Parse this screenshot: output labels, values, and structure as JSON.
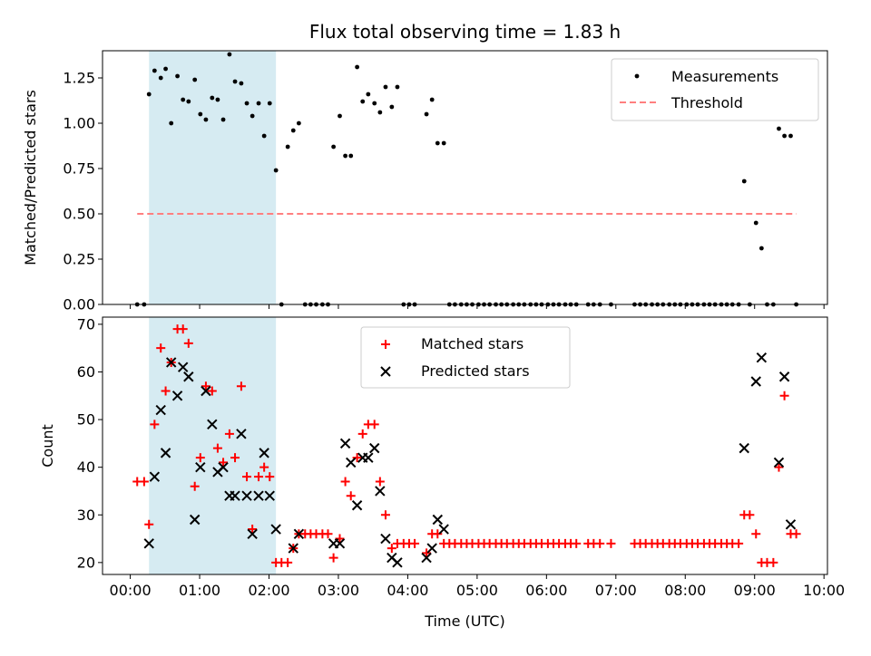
{
  "chart_data": [
    {
      "type": "scatter",
      "title": "Flux total observing time = 1.83 h",
      "ylabel": "Matched/Predicted stars",
      "xlabel": "",
      "xlim": [
        -0.4,
        10.05
      ],
      "ylim": [
        0,
        1.4
      ],
      "yticks": [
        0,
        0.25,
        0.5,
        0.75,
        1.0,
        1.25
      ],
      "ytick_labels": [
        "0.00",
        "0.25",
        "0.50",
        "0.75",
        "1.00",
        "1.25"
      ],
      "shaded_interval": [
        0.27,
        2.1
      ],
      "shade_color": "#add8e6",
      "legend": {
        "placement": "top-right",
        "entries": [
          "Measurements",
          "Threshold"
        ]
      },
      "threshold": {
        "name": "Threshold",
        "value": 0.5,
        "x": [
          0.1,
          9.6
        ],
        "color": "#ff7f7f",
        "style": "dashed"
      },
      "series": [
        {
          "name": "Measurements",
          "color": "#000000",
          "marker": "dot",
          "points": [
            [
              0.1,
              0
            ],
            [
              0.2,
              0
            ],
            [
              0.27,
              1.16
            ],
            [
              0.35,
              1.29
            ],
            [
              0.44,
              1.25
            ],
            [
              0.51,
              1.3
            ],
            [
              0.59,
              1.0
            ],
            [
              0.68,
              1.26
            ],
            [
              0.76,
              1.13
            ],
            [
              0.84,
              1.12
            ],
            [
              0.93,
              1.24
            ],
            [
              1.01,
              1.05
            ],
            [
              1.09,
              1.02
            ],
            [
              1.18,
              1.14
            ],
            [
              1.26,
              1.13
            ],
            [
              1.34,
              1.02
            ],
            [
              1.43,
              1.38
            ],
            [
              1.51,
              1.23
            ],
            [
              1.6,
              1.22
            ],
            [
              1.68,
              1.11
            ],
            [
              1.76,
              1.04
            ],
            [
              1.85,
              1.11
            ],
            [
              1.93,
              0.93
            ],
            [
              2.01,
              1.11
            ],
            [
              2.1,
              0.74
            ],
            [
              2.18,
              0
            ],
            [
              2.27,
              0.87
            ],
            [
              2.35,
              0.96
            ],
            [
              2.43,
              1.0
            ],
            [
              2.52,
              0
            ],
            [
              2.6,
              0
            ],
            [
              2.68,
              0
            ],
            [
              2.77,
              0
            ],
            [
              2.85,
              0
            ],
            [
              2.93,
              0.87
            ],
            [
              3.02,
              1.04
            ],
            [
              3.1,
              0.82
            ],
            [
              3.18,
              0.82
            ],
            [
              3.27,
              1.31
            ],
            [
              3.35,
              1.12
            ],
            [
              3.43,
              1.16
            ],
            [
              3.52,
              1.11
            ],
            [
              3.6,
              1.06
            ],
            [
              3.68,
              1.2
            ],
            [
              3.77,
              1.09
            ],
            [
              3.85,
              1.2
            ],
            [
              3.94,
              0
            ],
            [
              4.02,
              0
            ],
            [
              4.1,
              0
            ],
            [
              4.27,
              1.05
            ],
            [
              4.35,
              1.13
            ],
            [
              4.43,
              0.89
            ],
            [
              4.52,
              0.89
            ],
            [
              4.6,
              0
            ],
            [
              4.68,
              0
            ],
            [
              4.77,
              0
            ],
            [
              4.85,
              0
            ],
            [
              4.93,
              0
            ],
            [
              5.02,
              0
            ],
            [
              5.1,
              0
            ],
            [
              5.18,
              0
            ],
            [
              5.27,
              0
            ],
            [
              5.35,
              0
            ],
            [
              5.43,
              0
            ],
            [
              5.52,
              0
            ],
            [
              5.6,
              0
            ],
            [
              5.68,
              0
            ],
            [
              5.77,
              0
            ],
            [
              5.85,
              0
            ],
            [
              5.93,
              0
            ],
            [
              6.02,
              0
            ],
            [
              6.1,
              0
            ],
            [
              6.18,
              0
            ],
            [
              6.27,
              0
            ],
            [
              6.35,
              0
            ],
            [
              6.43,
              0
            ],
            [
              6.6,
              0
            ],
            [
              6.68,
              0
            ],
            [
              6.77,
              0
            ],
            [
              6.93,
              0
            ],
            [
              7.27,
              0
            ],
            [
              7.35,
              0
            ],
            [
              7.43,
              0
            ],
            [
              7.52,
              0
            ],
            [
              7.6,
              0
            ],
            [
              7.68,
              0
            ],
            [
              7.77,
              0
            ],
            [
              7.85,
              0
            ],
            [
              7.93,
              0
            ],
            [
              8.02,
              0
            ],
            [
              8.1,
              0
            ],
            [
              8.18,
              0
            ],
            [
              8.27,
              0
            ],
            [
              8.35,
              0
            ],
            [
              8.43,
              0
            ],
            [
              8.52,
              0
            ],
            [
              8.6,
              0
            ],
            [
              8.68,
              0
            ],
            [
              8.77,
              0
            ],
            [
              8.85,
              0.68
            ],
            [
              8.93,
              0
            ],
            [
              9.02,
              0.45
            ],
            [
              9.1,
              0.31
            ],
            [
              9.18,
              0
            ],
            [
              9.27,
              0
            ],
            [
              9.35,
              0.97
            ],
            [
              9.43,
              0.93
            ],
            [
              9.52,
              0.93
            ],
            [
              9.6,
              0
            ]
          ]
        }
      ]
    },
    {
      "type": "scatter",
      "title": "",
      "xlabel": "Time (UTC)",
      "ylabel": "Count",
      "xlim": [
        -0.4,
        10.05
      ],
      "ylim": [
        17.5,
        71.5
      ],
      "yticks": [
        20,
        30,
        40,
        50,
        60,
        70
      ],
      "ytick_labels": [
        "20",
        "30",
        "40",
        "50",
        "60",
        "70"
      ],
      "xticks": [
        0,
        1,
        2,
        3,
        4,
        5,
        6,
        7,
        8,
        9,
        10
      ],
      "xtick_labels": [
        "00:00",
        "01:00",
        "02:00",
        "03:00",
        "04:00",
        "05:00",
        "06:00",
        "07:00",
        "08:00",
        "09:00",
        "10:00"
      ],
      "shaded_interval": [
        0.27,
        2.1
      ],
      "shade_color": "#add8e6",
      "legend": {
        "placement": "top-center",
        "entries": [
          "Matched stars",
          "Predicted stars"
        ]
      },
      "series": [
        {
          "name": "Matched stars",
          "color": "#ff0000",
          "marker": "plus",
          "points": [
            [
              0.1,
              37
            ],
            [
              0.2,
              37
            ],
            [
              0.27,
              28
            ],
            [
              0.35,
              49
            ],
            [
              0.44,
              65
            ],
            [
              0.51,
              56
            ],
            [
              0.59,
              62
            ],
            [
              0.68,
              69
            ],
            [
              0.76,
              69
            ],
            [
              0.84,
              66
            ],
            [
              0.93,
              36
            ],
            [
              1.01,
              42
            ],
            [
              1.09,
              57
            ],
            [
              1.18,
              56
            ],
            [
              1.26,
              44
            ],
            [
              1.34,
              41
            ],
            [
              1.43,
              47
            ],
            [
              1.51,
              42
            ],
            [
              1.6,
              57
            ],
            [
              1.68,
              38
            ],
            [
              1.76,
              27
            ],
            [
              1.85,
              38
            ],
            [
              1.93,
              40
            ],
            [
              2.01,
              38
            ],
            [
              2.1,
              20
            ],
            [
              2.18,
              20
            ],
            [
              2.27,
              20
            ],
            [
              2.35,
              23
            ],
            [
              2.43,
              26
            ],
            [
              2.52,
              26
            ],
            [
              2.6,
              26
            ],
            [
              2.68,
              26
            ],
            [
              2.77,
              26
            ],
            [
              2.85,
              26
            ],
            [
              2.93,
              21
            ],
            [
              3.02,
              25
            ],
            [
              3.1,
              37
            ],
            [
              3.18,
              34
            ],
            [
              3.27,
              42
            ],
            [
              3.35,
              47
            ],
            [
              3.43,
              49
            ],
            [
              3.52,
              49
            ],
            [
              3.6,
              37
            ],
            [
              3.68,
              30
            ],
            [
              3.77,
              23
            ],
            [
              3.85,
              24
            ],
            [
              3.94,
              24
            ],
            [
              4.02,
              24
            ],
            [
              4.1,
              24
            ],
            [
              4.27,
              22
            ],
            [
              4.35,
              26
            ],
            [
              4.43,
              26
            ],
            [
              4.52,
              24
            ],
            [
              4.6,
              24
            ],
            [
              4.68,
              24
            ],
            [
              4.77,
              24
            ],
            [
              4.85,
              24
            ],
            [
              4.93,
              24
            ],
            [
              5.02,
              24
            ],
            [
              5.1,
              24
            ],
            [
              5.18,
              24
            ],
            [
              5.27,
              24
            ],
            [
              5.35,
              24
            ],
            [
              5.43,
              24
            ],
            [
              5.52,
              24
            ],
            [
              5.6,
              24
            ],
            [
              5.68,
              24
            ],
            [
              5.77,
              24
            ],
            [
              5.85,
              24
            ],
            [
              5.93,
              24
            ],
            [
              6.02,
              24
            ],
            [
              6.1,
              24
            ],
            [
              6.18,
              24
            ],
            [
              6.27,
              24
            ],
            [
              6.35,
              24
            ],
            [
              6.43,
              24
            ],
            [
              6.6,
              24
            ],
            [
              6.68,
              24
            ],
            [
              6.77,
              24
            ],
            [
              6.93,
              24
            ],
            [
              7.27,
              24
            ],
            [
              7.35,
              24
            ],
            [
              7.43,
              24
            ],
            [
              7.52,
              24
            ],
            [
              7.6,
              24
            ],
            [
              7.68,
              24
            ],
            [
              7.77,
              24
            ],
            [
              7.85,
              24
            ],
            [
              7.93,
              24
            ],
            [
              8.02,
              24
            ],
            [
              8.1,
              24
            ],
            [
              8.18,
              24
            ],
            [
              8.27,
              24
            ],
            [
              8.35,
              24
            ],
            [
              8.43,
              24
            ],
            [
              8.52,
              24
            ],
            [
              8.6,
              24
            ],
            [
              8.68,
              24
            ],
            [
              8.77,
              24
            ],
            [
              8.85,
              30
            ],
            [
              8.93,
              30
            ],
            [
              9.02,
              26
            ],
            [
              9.1,
              20
            ],
            [
              9.18,
              20
            ],
            [
              9.27,
              20
            ],
            [
              9.35,
              40
            ],
            [
              9.43,
              55
            ],
            [
              9.52,
              26
            ],
            [
              9.6,
              26
            ]
          ]
        },
        {
          "name": "Predicted stars",
          "color": "#000000",
          "marker": "x",
          "points": [
            [
              0.27,
              24
            ],
            [
              0.35,
              38
            ],
            [
              0.44,
              52
            ],
            [
              0.51,
              43
            ],
            [
              0.59,
              62
            ],
            [
              0.68,
              55
            ],
            [
              0.76,
              61
            ],
            [
              0.84,
              59
            ],
            [
              0.93,
              29
            ],
            [
              1.01,
              40
            ],
            [
              1.09,
              56
            ],
            [
              1.18,
              49
            ],
            [
              1.26,
              39
            ],
            [
              1.34,
              40
            ],
            [
              1.43,
              34
            ],
            [
              1.51,
              34
            ],
            [
              1.6,
              47
            ],
            [
              1.68,
              34
            ],
            [
              1.76,
              26
            ],
            [
              1.85,
              34
            ],
            [
              1.93,
              43
            ],
            [
              2.01,
              34
            ],
            [
              2.1,
              27
            ],
            [
              2.35,
              23
            ],
            [
              2.43,
              26
            ],
            [
              2.93,
              24
            ],
            [
              3.02,
              24
            ],
            [
              3.1,
              45
            ],
            [
              3.18,
              41
            ],
            [
              3.27,
              32
            ],
            [
              3.35,
              42
            ],
            [
              3.43,
              42
            ],
            [
              3.52,
              44
            ],
            [
              3.6,
              35
            ],
            [
              3.68,
              25
            ],
            [
              3.77,
              21
            ],
            [
              3.85,
              20
            ],
            [
              4.27,
              21
            ],
            [
              4.35,
              23
            ],
            [
              4.43,
              29
            ],
            [
              4.52,
              27
            ],
            [
              8.85,
              44
            ],
            [
              9.02,
              58
            ],
            [
              9.1,
              63
            ],
            [
              9.35,
              41
            ],
            [
              9.43,
              59
            ],
            [
              9.52,
              28
            ]
          ]
        }
      ]
    }
  ]
}
